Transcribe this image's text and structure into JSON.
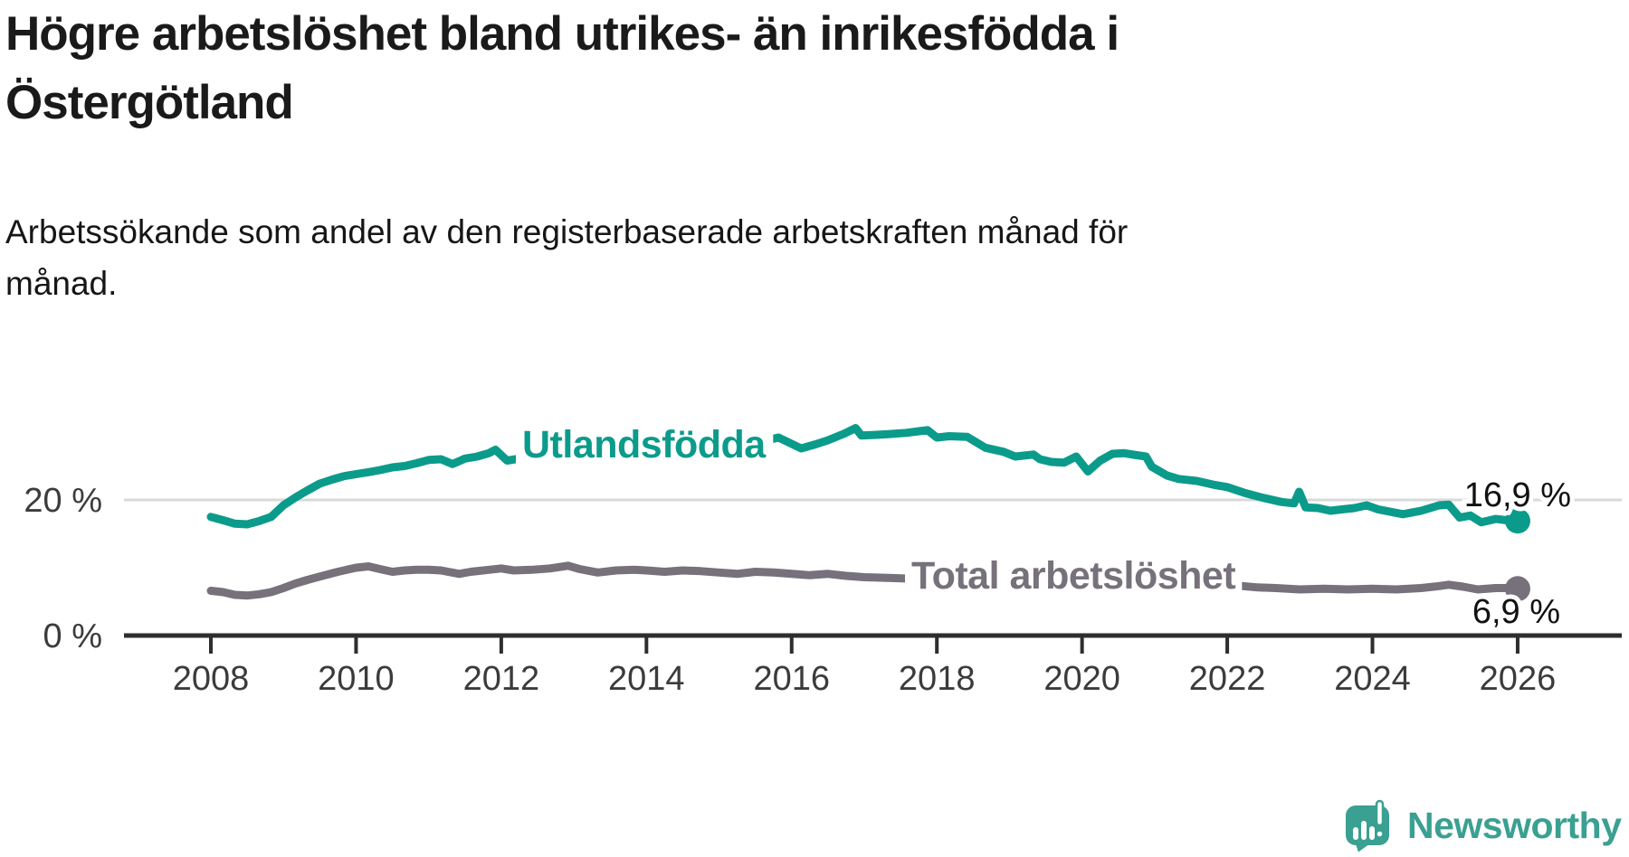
{
  "header": {
    "title_line1": "Högre arbetslöshet bland utrikes- än inrikesfödda i",
    "title_line2": "Östergötland",
    "subtitle_line1": "Arbetssökande som andel av den registerbaserade arbetskraften månad för",
    "subtitle_line2": "månad."
  },
  "footer": {
    "brand": "Newsworthy",
    "logo_icon": "newsworthy-speech-bubble-bar-chart-icon"
  },
  "colors": {
    "foreign_born_line": "#0b9b8b",
    "total_line": "#76717b",
    "logo_teal": "#3aa092",
    "gridline": "#d9d9d9",
    "axis": "#2e2e2e",
    "axis_labels": "#3b3b3b",
    "value_labels": "#111111",
    "background": "#ffffff"
  },
  "chart_data": {
    "type": "line",
    "title": "Högre arbetslöshet bland utrikes- än inrikesfödda i Östergötland",
    "subtitle": "Arbetssökande som andel av den registerbaserade arbetskraften månad för månad.",
    "xlabel": "",
    "ylabel": "",
    "x_range": [
      2006.8,
      2027.4
    ],
    "y_range": [
      0,
      42
    ],
    "grid": "single horizontal gridline at 20 %",
    "legend_position": "inline labels on lines",
    "x_axis": {
      "ticks": [
        2008,
        2010,
        2012,
        2014,
        2016,
        2018,
        2020,
        2022,
        2024,
        2026
      ]
    },
    "y_axis": {
      "ticks": [
        {
          "value": 0,
          "label": "0 %"
        },
        {
          "value": 20,
          "label": "20 %"
        }
      ]
    },
    "series": [
      {
        "name": "Utlandsfödda",
        "slug": "utlandsfodda",
        "color": "#0b9b8b",
        "end_label": "16,9 %",
        "end_value": 16.9,
        "points": [
          [
            2008.0,
            17.5
          ],
          [
            2008.17,
            17.0
          ],
          [
            2008.33,
            16.5
          ],
          [
            2008.5,
            16.4
          ],
          [
            2008.67,
            16.9
          ],
          [
            2008.83,
            17.5
          ],
          [
            2008.92,
            18.4
          ],
          [
            2009.0,
            19.2
          ],
          [
            2009.17,
            20.4
          ],
          [
            2009.33,
            21.4
          ],
          [
            2009.5,
            22.4
          ],
          [
            2009.67,
            23.0
          ],
          [
            2009.83,
            23.5
          ],
          [
            2010.0,
            23.8
          ],
          [
            2010.17,
            24.1
          ],
          [
            2010.33,
            24.4
          ],
          [
            2010.5,
            24.8
          ],
          [
            2010.67,
            25.0
          ],
          [
            2010.83,
            25.4
          ],
          [
            2011.0,
            25.9
          ],
          [
            2011.17,
            26.0
          ],
          [
            2011.33,
            25.3
          ],
          [
            2011.5,
            26.1
          ],
          [
            2011.67,
            26.4
          ],
          [
            2011.83,
            26.9
          ],
          [
            2011.92,
            27.4
          ],
          [
            2012.08,
            25.8
          ],
          [
            2012.25,
            26.1
          ],
          [
            2012.5,
            26.3
          ],
          [
            2012.75,
            26.5
          ],
          [
            2013.0,
            26.6
          ],
          [
            2013.25,
            26.5
          ],
          [
            2013.5,
            26.8
          ],
          [
            2013.75,
            27.0
          ],
          [
            2014.0,
            27.1
          ],
          [
            2014.25,
            27.0
          ],
          [
            2014.5,
            27.3
          ],
          [
            2014.75,
            27.6
          ],
          [
            2015.0,
            27.9
          ],
          [
            2015.25,
            28.1
          ],
          [
            2015.5,
            28.4
          ],
          [
            2015.82,
            29.2
          ],
          [
            2016.13,
            27.6
          ],
          [
            2016.33,
            28.2
          ],
          [
            2016.5,
            28.8
          ],
          [
            2016.73,
            29.8
          ],
          [
            2016.88,
            30.6
          ],
          [
            2016.96,
            29.5
          ],
          [
            2017.17,
            29.6
          ],
          [
            2017.33,
            29.7
          ],
          [
            2017.58,
            29.9
          ],
          [
            2017.87,
            30.3
          ],
          [
            2018.0,
            29.2
          ],
          [
            2018.17,
            29.4
          ],
          [
            2018.42,
            29.3
          ],
          [
            2018.67,
            27.7
          ],
          [
            2018.92,
            27.1
          ],
          [
            2019.08,
            26.4
          ],
          [
            2019.33,
            26.7
          ],
          [
            2019.42,
            26.0
          ],
          [
            2019.58,
            25.6
          ],
          [
            2019.75,
            25.5
          ],
          [
            2019.92,
            26.4
          ],
          [
            2020.08,
            24.2
          ],
          [
            2020.25,
            25.8
          ],
          [
            2020.42,
            26.8
          ],
          [
            2020.58,
            26.9
          ],
          [
            2020.75,
            26.6
          ],
          [
            2020.88,
            26.4
          ],
          [
            2020.96,
            24.9
          ],
          [
            2021.17,
            23.6
          ],
          [
            2021.33,
            23.1
          ],
          [
            2021.58,
            22.8
          ],
          [
            2021.83,
            22.2
          ],
          [
            2022.0,
            21.9
          ],
          [
            2022.25,
            21.0
          ],
          [
            2022.5,
            20.3
          ],
          [
            2022.75,
            19.7
          ],
          [
            2022.92,
            19.5
          ],
          [
            2022.99,
            21.2
          ],
          [
            2023.08,
            18.9
          ],
          [
            2023.25,
            18.8
          ],
          [
            2023.42,
            18.4
          ],
          [
            2023.58,
            18.6
          ],
          [
            2023.75,
            18.8
          ],
          [
            2023.92,
            19.2
          ],
          [
            2024.08,
            18.6
          ],
          [
            2024.42,
            17.9
          ],
          [
            2024.67,
            18.4
          ],
          [
            2024.92,
            19.2
          ],
          [
            2025.05,
            19.3
          ],
          [
            2025.2,
            17.4
          ],
          [
            2025.35,
            17.7
          ],
          [
            2025.5,
            16.7
          ],
          [
            2025.7,
            17.2
          ],
          [
            2025.85,
            17.0
          ],
          [
            2026.0,
            16.9
          ]
        ]
      },
      {
        "name": "Total arbetslöshet",
        "slug": "total-arbetsloshet",
        "color": "#76717b",
        "end_label": "6,9 %",
        "end_value": 6.9,
        "points": [
          [
            2008.0,
            6.6
          ],
          [
            2008.17,
            6.4
          ],
          [
            2008.33,
            6.0
          ],
          [
            2008.5,
            5.9
          ],
          [
            2008.67,
            6.1
          ],
          [
            2008.83,
            6.4
          ],
          [
            2009.0,
            7.0
          ],
          [
            2009.17,
            7.7
          ],
          [
            2009.33,
            8.2
          ],
          [
            2009.5,
            8.7
          ],
          [
            2009.75,
            9.4
          ],
          [
            2010.0,
            10.0
          ],
          [
            2010.17,
            10.2
          ],
          [
            2010.33,
            9.8
          ],
          [
            2010.5,
            9.4
          ],
          [
            2010.67,
            9.6
          ],
          [
            2010.83,
            9.7
          ],
          [
            2011.0,
            9.7
          ],
          [
            2011.17,
            9.6
          ],
          [
            2011.42,
            9.1
          ],
          [
            2011.58,
            9.4
          ],
          [
            2011.83,
            9.7
          ],
          [
            2012.0,
            9.9
          ],
          [
            2012.17,
            9.6
          ],
          [
            2012.42,
            9.7
          ],
          [
            2012.67,
            9.9
          ],
          [
            2012.92,
            10.3
          ],
          [
            2013.08,
            9.8
          ],
          [
            2013.33,
            9.3
          ],
          [
            2013.58,
            9.6
          ],
          [
            2013.83,
            9.7
          ],
          [
            2014.0,
            9.6
          ],
          [
            2014.25,
            9.4
          ],
          [
            2014.5,
            9.6
          ],
          [
            2014.75,
            9.5
          ],
          [
            2015.0,
            9.3
          ],
          [
            2015.25,
            9.1
          ],
          [
            2015.5,
            9.4
          ],
          [
            2015.75,
            9.3
          ],
          [
            2016.0,
            9.1
          ],
          [
            2016.25,
            8.9
          ],
          [
            2016.5,
            9.1
          ],
          [
            2016.75,
            8.8
          ],
          [
            2017.0,
            8.6
          ],
          [
            2017.33,
            8.5
          ],
          [
            2017.6,
            8.4
          ],
          [
            2018.0,
            8.2
          ],
          [
            2018.5,
            8.0
          ],
          [
            2019.0,
            7.8
          ],
          [
            2019.5,
            7.6
          ],
          [
            2020.0,
            7.9
          ],
          [
            2020.33,
            9.1
          ],
          [
            2020.58,
            9.4
          ],
          [
            2021.0,
            9.0
          ],
          [
            2021.5,
            8.2
          ],
          [
            2022.0,
            7.5
          ],
          [
            2022.42,
            7.1
          ],
          [
            2022.67,
            7.0
          ],
          [
            2023.0,
            6.8
          ],
          [
            2023.33,
            6.9
          ],
          [
            2023.67,
            6.8
          ],
          [
            2024.0,
            6.9
          ],
          [
            2024.33,
            6.8
          ],
          [
            2024.67,
            7.0
          ],
          [
            2024.92,
            7.3
          ],
          [
            2025.05,
            7.5
          ],
          [
            2025.25,
            7.2
          ],
          [
            2025.45,
            6.8
          ],
          [
            2025.7,
            7.0
          ],
          [
            2025.85,
            7.0
          ],
          [
            2026.0,
            6.9
          ]
        ]
      }
    ]
  }
}
